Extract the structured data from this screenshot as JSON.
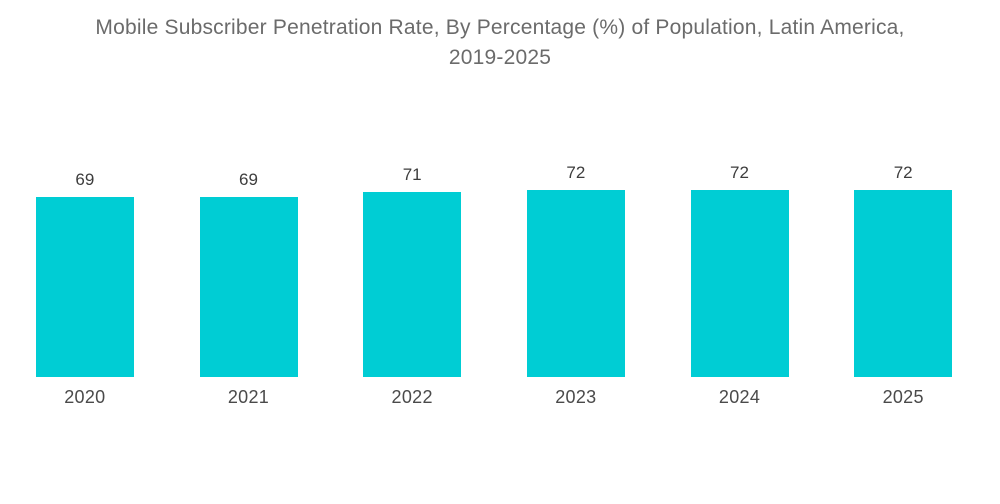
{
  "page": {
    "background": "#ffffff"
  },
  "title": {
    "line1": "Mobile Subscriber Penetration Rate, By Percentage (%) of Population, Latin America,",
    "line2": "2019-2025",
    "color": "#6b6b6b"
  },
  "chart_data": {
    "type": "bar",
    "title": "Mobile Subscriber Penetration Rate, By Percentage (%) of Population, Latin America, 2019-2025",
    "categories": [
      "2020",
      "2021",
      "2022",
      "2023",
      "2024",
      "2025"
    ],
    "values": [
      69,
      69,
      71,
      72,
      72,
      72
    ],
    "xlabel": "",
    "ylabel": "",
    "ylim": [
      0,
      72
    ],
    "grid": false,
    "legend": false,
    "value_labels_shown": true,
    "bar_color": "#00CDD4",
    "value_label_color": "#3d3d3d",
    "axis_label_color": "#4a4a4a",
    "title_color": "#6b6b6b"
  }
}
